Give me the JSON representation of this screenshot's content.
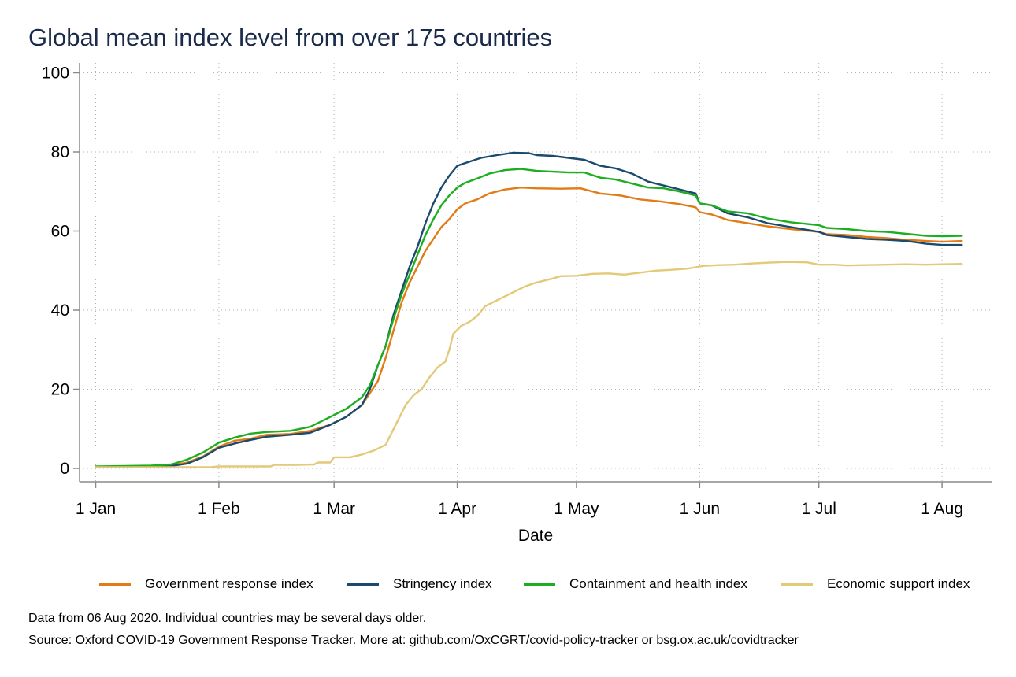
{
  "chart_data": {
    "type": "line",
    "title": "Global mean index level from over 175 countries",
    "xlabel": "Date",
    "ylabel": "",
    "ylim": [
      0,
      100
    ],
    "yticks": [
      0,
      20,
      40,
      60,
      80,
      100
    ],
    "xticks": [
      {
        "label": "1 Jan",
        "day": 1
      },
      {
        "label": "1 Feb",
        "day": 32
      },
      {
        "label": "1 Mar",
        "day": 61
      },
      {
        "label": "1 Apr",
        "day": 92
      },
      {
        "label": "1 May",
        "day": 122
      },
      {
        "label": "1 Jun",
        "day": 153
      },
      {
        "label": "1 Jul",
        "day": 183
      },
      {
        "label": "1 Aug",
        "day": 214
      }
    ],
    "grid": true,
    "legend_position": "bottom",
    "series": [
      {
        "name": "Government response index",
        "color": "#e07b16",
        "points": [
          [
            1,
            0.4
          ],
          [
            15,
            0.5
          ],
          [
            20,
            0.8
          ],
          [
            24,
            1.5
          ],
          [
            28,
            3
          ],
          [
            32,
            5.5
          ],
          [
            36,
            7
          ],
          [
            40,
            7.5
          ],
          [
            44,
            8.5
          ],
          [
            50,
            8.7
          ],
          [
            55,
            9.5
          ],
          [
            60,
            11
          ],
          [
            64,
            13
          ],
          [
            68,
            16
          ],
          [
            70,
            19
          ],
          [
            72,
            22
          ],
          [
            74,
            28
          ],
          [
            76,
            35
          ],
          [
            78,
            42
          ],
          [
            80,
            47
          ],
          [
            82,
            51
          ],
          [
            84,
            55
          ],
          [
            86,
            58
          ],
          [
            88,
            61
          ],
          [
            90,
            63
          ],
          [
            92,
            65.5
          ],
          [
            94,
            67
          ],
          [
            97,
            68
          ],
          [
            100,
            69.5
          ],
          [
            104,
            70.5
          ],
          [
            108,
            71
          ],
          [
            112,
            70.8
          ],
          [
            118,
            70.7
          ],
          [
            123,
            70.8
          ],
          [
            128,
            69.5
          ],
          [
            133,
            69
          ],
          [
            138,
            68
          ],
          [
            143,
            67.5
          ],
          [
            148,
            66.8
          ],
          [
            152,
            66
          ],
          [
            153,
            64.8
          ],
          [
            156,
            64.2
          ],
          [
            160,
            62.8
          ],
          [
            165,
            62
          ],
          [
            170,
            61.2
          ],
          [
            176,
            60.5
          ],
          [
            183,
            59.8
          ],
          [
            185,
            59.2
          ],
          [
            190,
            59
          ],
          [
            195,
            58.5
          ],
          [
            200,
            58.2
          ],
          [
            205,
            57.8
          ],
          [
            210,
            57.5
          ],
          [
            214,
            57.3
          ],
          [
            219,
            57.5
          ]
        ]
      },
      {
        "name": "Stringency index",
        "color": "#1a4a6e",
        "points": [
          [
            1,
            0.4
          ],
          [
            15,
            0.5
          ],
          [
            20,
            0.6
          ],
          [
            24,
            1.2
          ],
          [
            28,
            2.8
          ],
          [
            32,
            5.2
          ],
          [
            36,
            6.3
          ],
          [
            40,
            7.2
          ],
          [
            44,
            8
          ],
          [
            50,
            8.5
          ],
          [
            55,
            9
          ],
          [
            60,
            11
          ],
          [
            64,
            13
          ],
          [
            68,
            16
          ],
          [
            70,
            20
          ],
          [
            72,
            26
          ],
          [
            74,
            31
          ],
          [
            76,
            39
          ],
          [
            78,
            45
          ],
          [
            80,
            51
          ],
          [
            82,
            56
          ],
          [
            84,
            62
          ],
          [
            86,
            67
          ],
          [
            88,
            71
          ],
          [
            90,
            74
          ],
          [
            92,
            76.5
          ],
          [
            94,
            77.2
          ],
          [
            98,
            78.5
          ],
          [
            102,
            79.2
          ],
          [
            106,
            79.8
          ],
          [
            110,
            79.7
          ],
          [
            112,
            79.2
          ],
          [
            116,
            79
          ],
          [
            120,
            78.5
          ],
          [
            124,
            78
          ],
          [
            128,
            76.5
          ],
          [
            132,
            75.8
          ],
          [
            136,
            74.5
          ],
          [
            140,
            72.5
          ],
          [
            144,
            71.5
          ],
          [
            148,
            70.5
          ],
          [
            152,
            69.5
          ],
          [
            153,
            67
          ],
          [
            156,
            66.5
          ],
          [
            160,
            64.5
          ],
          [
            165,
            63.5
          ],
          [
            170,
            62
          ],
          [
            176,
            61
          ],
          [
            183,
            59.8
          ],
          [
            185,
            59
          ],
          [
            190,
            58.5
          ],
          [
            195,
            58
          ],
          [
            200,
            57.8
          ],
          [
            205,
            57.5
          ],
          [
            210,
            56.8
          ],
          [
            214,
            56.5
          ],
          [
            219,
            56.5
          ]
        ]
      },
      {
        "name": "Containment and health index",
        "color": "#1cae1f",
        "points": [
          [
            1,
            0.5
          ],
          [
            15,
            0.7
          ],
          [
            20,
            1
          ],
          [
            24,
            2.2
          ],
          [
            28,
            4
          ],
          [
            32,
            6.5
          ],
          [
            36,
            7.8
          ],
          [
            40,
            8.8
          ],
          [
            44,
            9.2
          ],
          [
            50,
            9.5
          ],
          [
            55,
            10.5
          ],
          [
            60,
            13
          ],
          [
            64,
            15
          ],
          [
            68,
            18
          ],
          [
            70,
            21
          ],
          [
            72,
            26
          ],
          [
            74,
            31
          ],
          [
            76,
            38
          ],
          [
            78,
            44
          ],
          [
            80,
            49
          ],
          [
            82,
            54
          ],
          [
            84,
            59
          ],
          [
            86,
            63
          ],
          [
            88,
            66.5
          ],
          [
            90,
            69
          ],
          [
            92,
            71
          ],
          [
            94,
            72.2
          ],
          [
            97,
            73.3
          ],
          [
            100,
            74.5
          ],
          [
            104,
            75.4
          ],
          [
            108,
            75.7
          ],
          [
            112,
            75.2
          ],
          [
            116,
            75
          ],
          [
            120,
            74.8
          ],
          [
            124,
            74.8
          ],
          [
            128,
            73.5
          ],
          [
            132,
            73
          ],
          [
            136,
            72
          ],
          [
            140,
            71
          ],
          [
            144,
            70.8
          ],
          [
            148,
            70
          ],
          [
            152,
            69
          ],
          [
            153,
            67
          ],
          [
            156,
            66.5
          ],
          [
            160,
            65
          ],
          [
            165,
            64.5
          ],
          [
            170,
            63.2
          ],
          [
            176,
            62.2
          ],
          [
            183,
            61.5
          ],
          [
            185,
            60.8
          ],
          [
            190,
            60.5
          ],
          [
            195,
            60
          ],
          [
            200,
            59.8
          ],
          [
            205,
            59.3
          ],
          [
            210,
            58.8
          ],
          [
            214,
            58.7
          ],
          [
            219,
            58.8
          ]
        ]
      },
      {
        "name": "Economic support index",
        "color": "#e3c978",
        "points": [
          [
            1,
            0.3
          ],
          [
            20,
            0.3
          ],
          [
            30,
            0.3
          ],
          [
            32,
            0.5
          ],
          [
            40,
            0.5
          ],
          [
            45,
            0.5
          ],
          [
            46,
            0.9
          ],
          [
            52,
            0.9
          ],
          [
            56,
            1
          ],
          [
            57,
            1.5
          ],
          [
            60,
            1.5
          ],
          [
            61,
            2.8
          ],
          [
            65,
            2.8
          ],
          [
            68,
            3.5
          ],
          [
            71,
            4.5
          ],
          [
            74,
            6
          ],
          [
            75,
            8
          ],
          [
            77,
            12
          ],
          [
            79,
            16
          ],
          [
            81,
            18.5
          ],
          [
            83,
            20
          ],
          [
            85,
            23
          ],
          [
            87,
            25.5
          ],
          [
            89,
            27
          ],
          [
            90,
            30
          ],
          [
            91,
            34
          ],
          [
            93,
            36
          ],
          [
            95,
            37
          ],
          [
            97,
            38.5
          ],
          [
            99,
            41
          ],
          [
            101,
            42
          ],
          [
            103,
            43
          ],
          [
            105,
            44
          ],
          [
            107,
            45
          ],
          [
            109,
            46
          ],
          [
            112,
            47
          ],
          [
            114,
            47.5
          ],
          [
            116,
            48
          ],
          [
            118,
            48.6
          ],
          [
            122,
            48.7
          ],
          [
            126,
            49.2
          ],
          [
            130,
            49.3
          ],
          [
            134,
            49
          ],
          [
            138,
            49.5
          ],
          [
            142,
            50
          ],
          [
            146,
            50.2
          ],
          [
            150,
            50.5
          ],
          [
            154,
            51.2
          ],
          [
            158,
            51.4
          ],
          [
            162,
            51.5
          ],
          [
            166,
            51.8
          ],
          [
            170,
            52
          ],
          [
            175,
            52.2
          ],
          [
            180,
            52.1
          ],
          [
            183,
            51.5
          ],
          [
            187,
            51.5
          ],
          [
            190,
            51.3
          ],
          [
            195,
            51.4
          ],
          [
            200,
            51.5
          ],
          [
            205,
            51.6
          ],
          [
            210,
            51.5
          ],
          [
            214,
            51.6
          ],
          [
            219,
            51.7
          ]
        ]
      }
    ]
  },
  "legend": {
    "items": [
      {
        "label": "Government response index",
        "color": "#e07b16"
      },
      {
        "label": "Stringency index",
        "color": "#1a4a6e"
      },
      {
        "label": "Containment and health index",
        "color": "#1cae1f"
      },
      {
        "label": "Economic support index",
        "color": "#e3c978"
      }
    ]
  },
  "notes": {
    "data_date": "Data from 06 Aug 2020. Individual countries may be several days older.",
    "source": "Source: Oxford COVID-19 Government Response Tracker. More at: github.com/OxCGRT/covid-policy-tracker or bsg.ox.ac.uk/covidtracker"
  }
}
